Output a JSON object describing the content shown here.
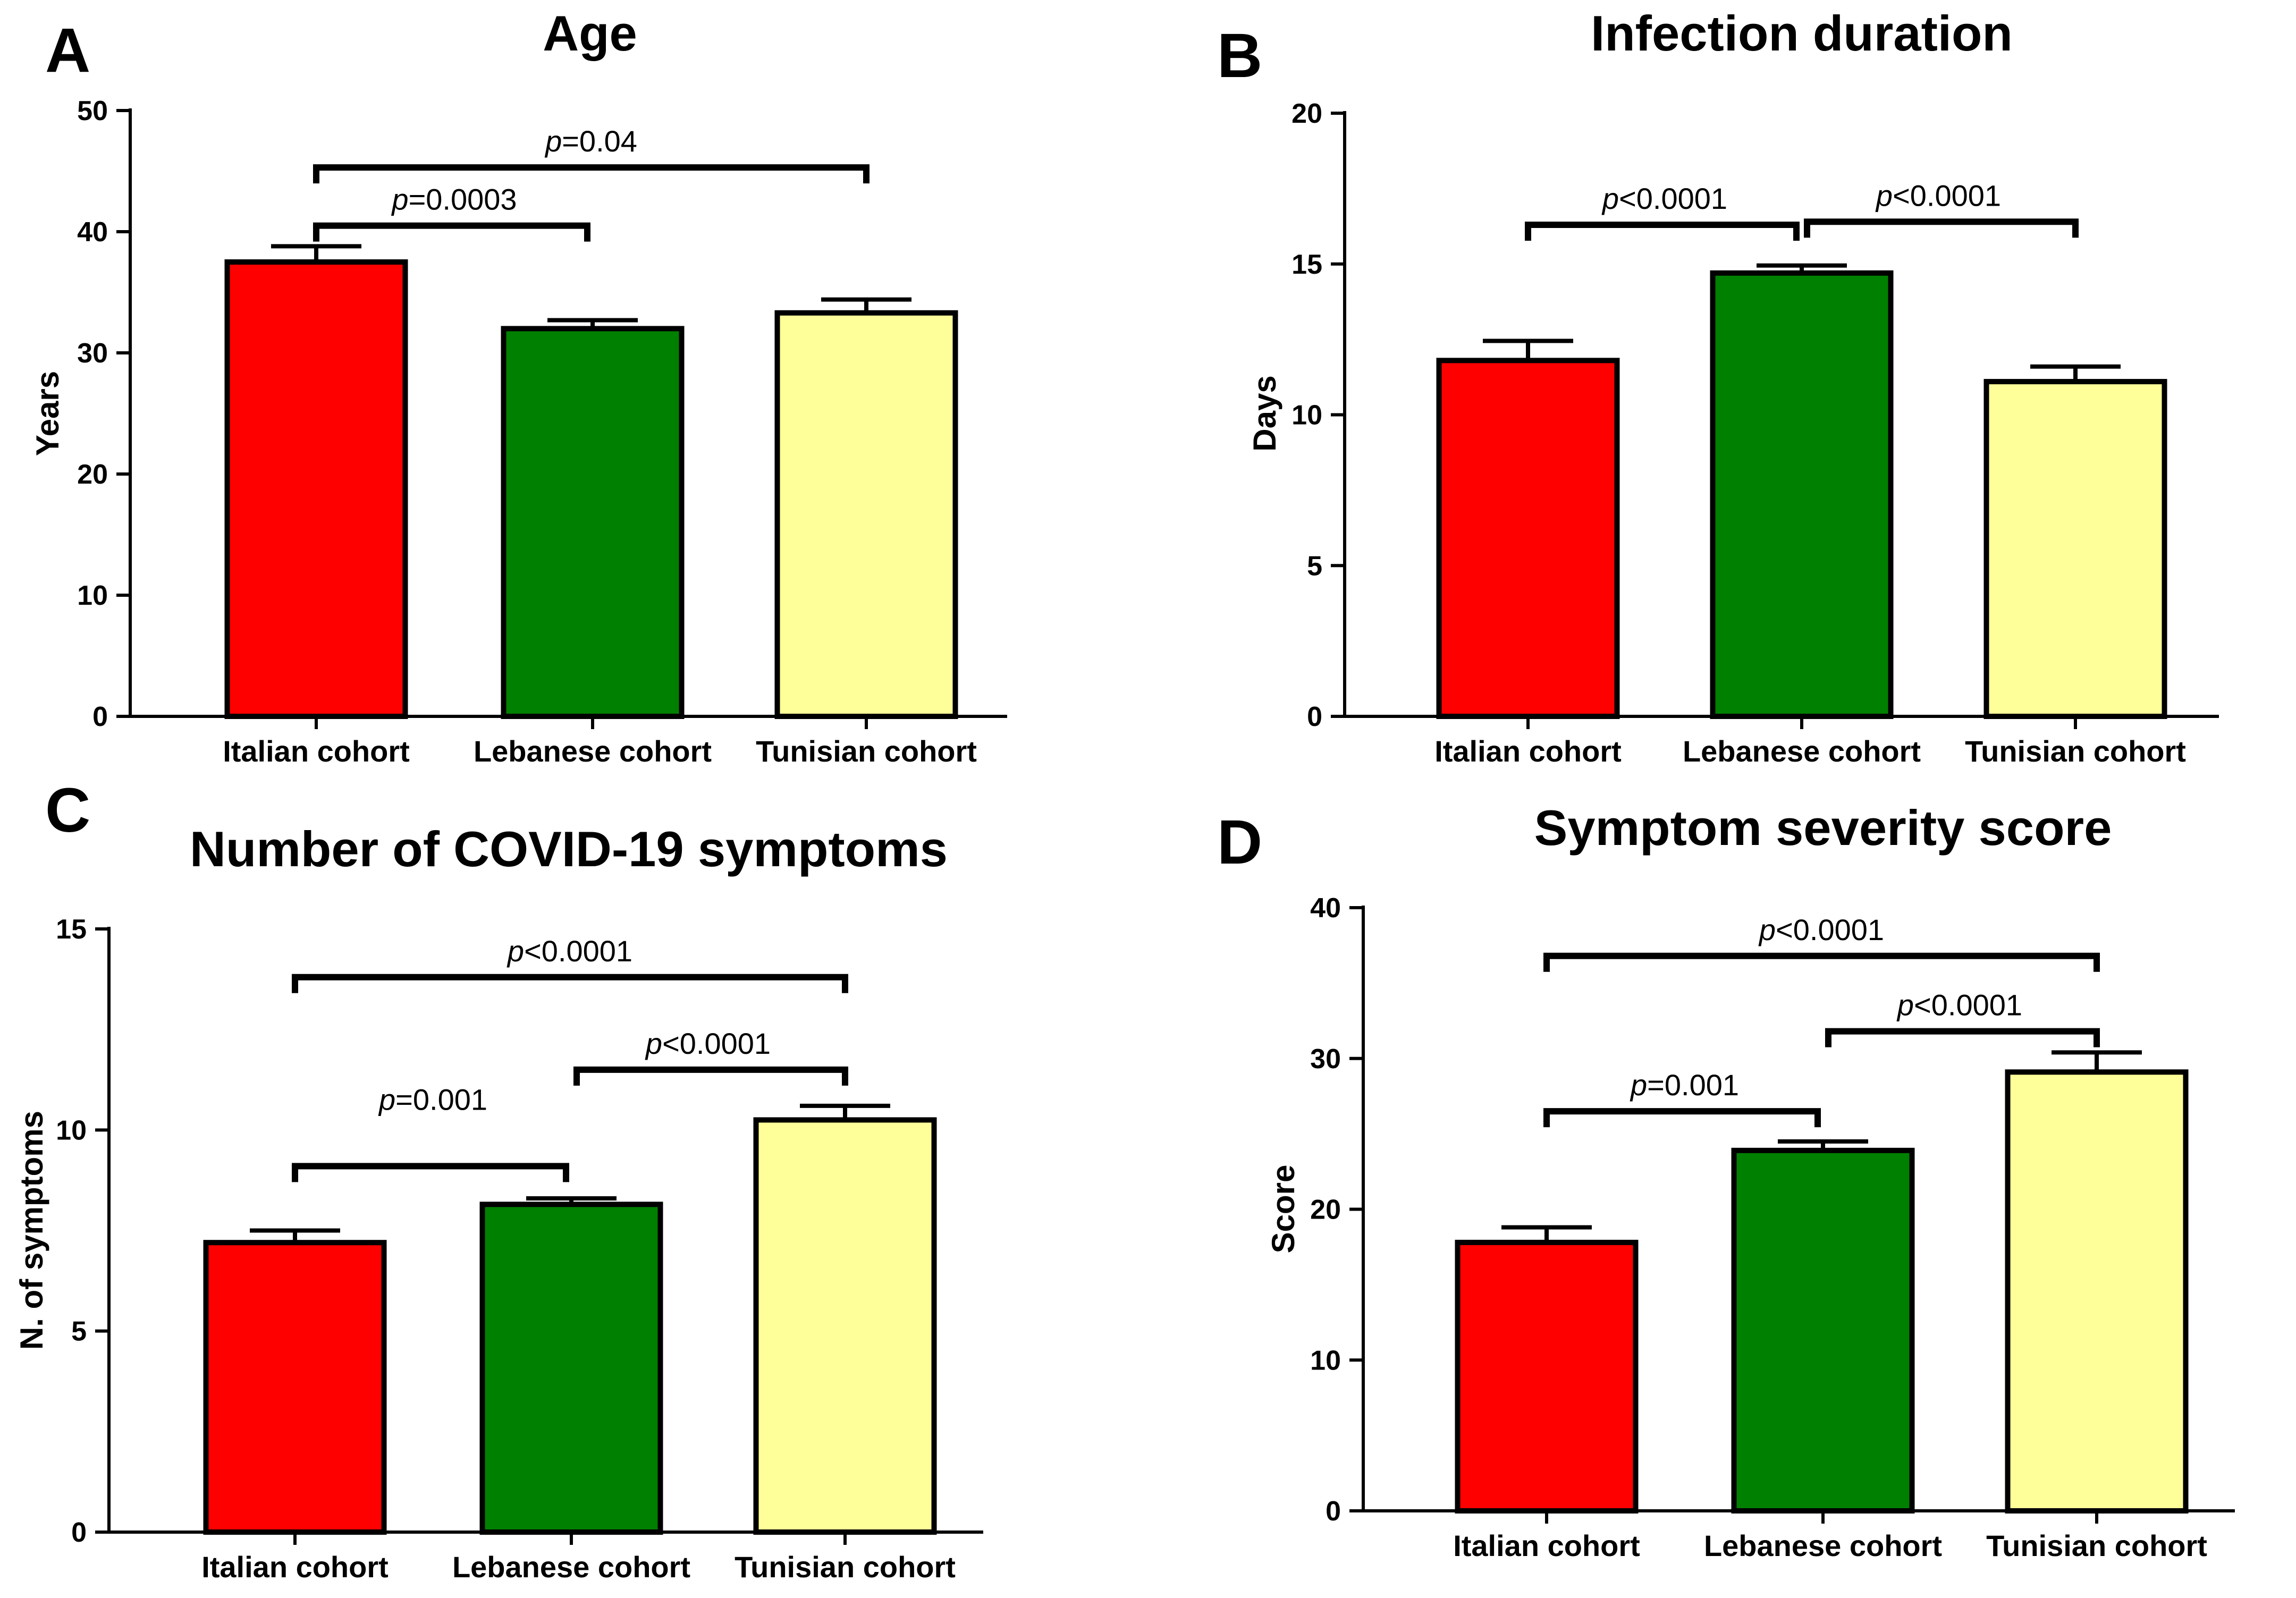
{
  "figure": {
    "cohort_colors": [
      "#ff0000",
      "#008000",
      "#ffff99"
    ],
    "category_labels": [
      "Italian cohort",
      "Lebanese cohort",
      "Tunisian cohort"
    ]
  },
  "chart_data": [
    {
      "panel": "A",
      "type": "bar",
      "title": "Age",
      "xlabel": "",
      "ylabel": "Years",
      "ylim": [
        0,
        50
      ],
      "yticks": [
        0,
        10,
        20,
        30,
        40,
        50
      ],
      "categories": [
        "Italian cohort",
        "Lebanese cohort",
        "Tunisian cohort"
      ],
      "values": [
        37.5,
        32.0,
        33.3
      ],
      "errors": [
        1.3,
        0.7,
        1.1
      ],
      "comparisons": [
        {
          "from": 0,
          "to": 1,
          "label_prefix": "p",
          "label_rest": "=0.0003",
          "y": 40.5
        },
        {
          "from": 0,
          "to": 2,
          "label_prefix": "p",
          "label_rest": "=0.04",
          "y": 45.3
        }
      ]
    },
    {
      "panel": "B",
      "type": "bar",
      "title": "Infection duration",
      "xlabel": "",
      "ylabel": "Days",
      "ylim": [
        0,
        20
      ],
      "yticks": [
        0,
        5,
        10,
        15,
        20
      ],
      "categories": [
        "Italian cohort",
        "Lebanese cohort",
        "Tunisian cohort"
      ],
      "values": [
        11.8,
        14.7,
        11.1
      ],
      "errors": [
        0.65,
        0.25,
        0.5
      ],
      "comparisons": [
        {
          "from": 0,
          "to": 1,
          "label_prefix": "p",
          "label_rest": "<0.0001",
          "y": 16.3
        },
        {
          "from": 1,
          "to": 2,
          "label_prefix": "p",
          "label_rest": "<0.0001",
          "y": 16.4
        }
      ]
    },
    {
      "panel": "C",
      "type": "bar",
      "title": "Number of COVID-19 symptoms",
      "xlabel": "",
      "ylabel": "N. of symptoms",
      "ylim": [
        0,
        15
      ],
      "yticks": [
        0,
        5,
        10,
        15
      ],
      "categories": [
        "Italian cohort",
        "Lebanese cohort",
        "Tunisian cohort"
      ],
      "values": [
        7.2,
        8.15,
        10.25
      ],
      "errors": [
        0.3,
        0.15,
        0.35
      ],
      "comparisons": [
        {
          "from": 0,
          "to": 1,
          "label_prefix": "p",
          "label_rest": "=0.001",
          "y": 9.1,
          "label_y": 10.5
        },
        {
          "from": 1,
          "to": 2,
          "label_prefix": "p",
          "label_rest": "<0.0001",
          "y": 11.5
        },
        {
          "from": 0,
          "to": 2,
          "label_prefix": "p",
          "label_rest": "<0.0001",
          "y": 13.8
        }
      ]
    },
    {
      "panel": "D",
      "type": "bar",
      "title": "Symptom severity score",
      "xlabel": "",
      "ylabel": "Score",
      "ylim": [
        0,
        40
      ],
      "yticks": [
        0,
        10,
        20,
        30,
        40
      ],
      "categories": [
        "Italian cohort",
        "Lebanese cohort",
        "Tunisian cohort"
      ],
      "values": [
        17.8,
        23.9,
        29.1
      ],
      "errors": [
        1.0,
        0.6,
        1.3
      ],
      "comparisons": [
        {
          "from": 0,
          "to": 1,
          "label_prefix": "p",
          "label_rest": "=0.001",
          "y": 26.5
        },
        {
          "from": 1,
          "to": 2,
          "label_prefix": "p",
          "label_rest": "<0.0001",
          "y": 31.8
        },
        {
          "from": 0,
          "to": 2,
          "label_prefix": "p",
          "label_rest": "<0.0001",
          "y": 36.8
        }
      ]
    }
  ]
}
